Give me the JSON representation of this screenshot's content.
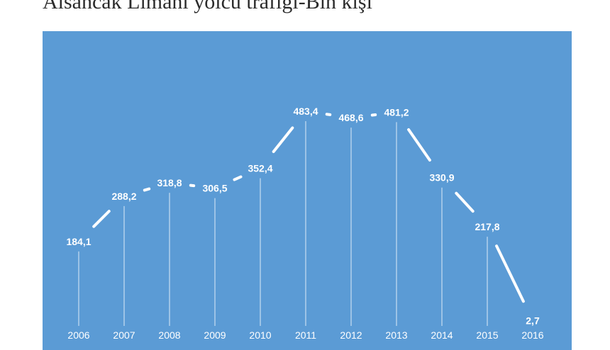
{
  "title": "Alsancak Limanı yolcu trafiği-Bin kişi",
  "chart_data": {
    "type": "line",
    "title": "Alsancak Limanı yolcu trafiği-Bin kişi",
    "categories": [
      "2006",
      "2007",
      "2008",
      "2009",
      "2010",
      "2011",
      "2012",
      "2013",
      "2014",
      "2015",
      "2016"
    ],
    "values": [
      184.1,
      288.2,
      318.8,
      306.5,
      352.4,
      483.4,
      468.6,
      481.2,
      330.9,
      217.8,
      2.7
    ],
    "data_labels": [
      "184,1",
      "288,2",
      "318,8",
      "306,5",
      "352,4",
      "483,4",
      "468,6",
      "481,2",
      "330,9",
      "217,8",
      "2,7"
    ],
    "colors": {
      "background": "#5b9bd5",
      "line": "#ffffff",
      "text": "#ffffff"
    },
    "grid": false,
    "legend": "none"
  }
}
